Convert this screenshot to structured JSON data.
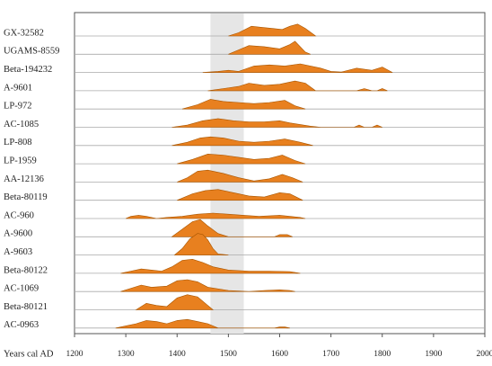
{
  "chart_data": {
    "type": "ridgeline",
    "x_label": "Years cal AD",
    "xlim": [
      1200,
      2000
    ],
    "xticks": [
      1200,
      1300,
      1400,
      1500,
      1600,
      1700,
      1800,
      1900,
      2000
    ],
    "highlight": [
      1465,
      1530
    ],
    "color": "#e8801f",
    "grid": true,
    "series": [
      {
        "name": "GX-32582",
        "x": [
          1500,
          1520,
          1545,
          1565,
          1585,
          1605,
          1620,
          1635,
          1650,
          1670
        ],
        "values": [
          0,
          0.15,
          0.45,
          0.4,
          0.35,
          0.3,
          0.45,
          0.55,
          0.35,
          0
        ]
      },
      {
        "name": "UGAMS-8559",
        "x": [
          1500,
          1520,
          1540,
          1570,
          1600,
          1620,
          1630,
          1650,
          1660
        ],
        "values": [
          0,
          0.2,
          0.4,
          0.35,
          0.25,
          0.45,
          0.6,
          0.1,
          0
        ]
      },
      {
        "name": "Beta-194232",
        "x": [
          1450,
          1480,
          1500,
          1520,
          1550,
          1580,
          1610,
          1640,
          1680,
          1700,
          1720,
          1750,
          1780,
          1800,
          1820
        ],
        "values": [
          0,
          0.05,
          0.1,
          0.05,
          0.3,
          0.35,
          0.3,
          0.4,
          0.2,
          0.05,
          0.02,
          0.2,
          0.1,
          0.25,
          0
        ]
      },
      {
        "name": "A-9601",
        "x": [
          1460,
          1490,
          1520,
          1540,
          1570,
          1600,
          1630,
          1650,
          1670,
          1750,
          1765,
          1780,
          1790,
          1800,
          1810
        ],
        "values": [
          0,
          0.1,
          0.2,
          0.35,
          0.25,
          0.3,
          0.45,
          0.35,
          0,
          0,
          0.1,
          0,
          0,
          0.1,
          0
        ]
      },
      {
        "name": "LP-972",
        "x": [
          1410,
          1440,
          1465,
          1490,
          1520,
          1550,
          1580,
          1610,
          1630,
          1650
        ],
        "values": [
          0,
          0.2,
          0.45,
          0.35,
          0.3,
          0.25,
          0.3,
          0.4,
          0.15,
          0
        ]
      },
      {
        "name": "AC-1085",
        "x": [
          1390,
          1420,
          1450,
          1480,
          1510,
          1540,
          1570,
          1600,
          1620,
          1660,
          1680,
          1745,
          1755,
          1765,
          1780,
          1790,
          1800
        ],
        "values": [
          0,
          0.1,
          0.3,
          0.4,
          0.3,
          0.25,
          0.25,
          0.3,
          0.2,
          0.05,
          0,
          0,
          0.1,
          0,
          0,
          0.1,
          0
        ]
      },
      {
        "name": "LP-808",
        "x": [
          1390,
          1420,
          1445,
          1465,
          1490,
          1520,
          1550,
          1580,
          1610,
          1640,
          1665
        ],
        "values": [
          0,
          0.15,
          0.35,
          0.4,
          0.35,
          0.2,
          0.15,
          0.2,
          0.3,
          0.15,
          0
        ]
      },
      {
        "name": "LP-1959",
        "x": [
          1400,
          1430,
          1460,
          1490,
          1520,
          1550,
          1580,
          1605,
          1630,
          1650
        ],
        "values": [
          0,
          0.2,
          0.45,
          0.4,
          0.3,
          0.2,
          0.25,
          0.4,
          0.15,
          0
        ]
      },
      {
        "name": "AA-12136",
        "x": [
          1400,
          1420,
          1440,
          1460,
          1490,
          1520,
          1550,
          1580,
          1605,
          1625,
          1645
        ],
        "values": [
          0,
          0.2,
          0.5,
          0.55,
          0.4,
          0.2,
          0.05,
          0.15,
          0.35,
          0.2,
          0
        ]
      },
      {
        "name": "Beta-80119",
        "x": [
          1400,
          1430,
          1455,
          1480,
          1510,
          1540,
          1570,
          1600,
          1620,
          1645
        ],
        "values": [
          0,
          0.3,
          0.45,
          0.5,
          0.35,
          0.2,
          0.15,
          0.35,
          0.3,
          0
        ]
      },
      {
        "name": "AC-960",
        "x": [
          1300,
          1310,
          1325,
          1340,
          1360,
          1380,
          1410,
          1440,
          1470,
          1500,
          1530,
          1560,
          1600,
          1620,
          1640,
          1650
        ],
        "values": [
          0,
          0.1,
          0.15,
          0.1,
          0,
          0.05,
          0.1,
          0.2,
          0.25,
          0.2,
          0.15,
          0.1,
          0.15,
          0.1,
          0.05,
          0
        ]
      },
      {
        "name": "A-9600",
        "x": [
          1390,
          1410,
          1430,
          1445,
          1460,
          1480,
          1500,
          1590,
          1600,
          1615,
          1625
        ],
        "values": [
          0,
          0.35,
          0.7,
          0.8,
          0.5,
          0.15,
          0,
          0,
          0.1,
          0.1,
          0
        ]
      },
      {
        "name": "A-9603",
        "x": [
          1395,
          1410,
          1425,
          1440,
          1450,
          1460,
          1470,
          1480,
          1500
        ],
        "values": [
          0,
          0.3,
          0.75,
          1.0,
          0.95,
          0.7,
          0.3,
          0.05,
          0
        ]
      },
      {
        "name": "Beta-80122",
        "x": [
          1290,
          1310,
          1330,
          1350,
          1370,
          1390,
          1410,
          1430,
          1450,
          1470,
          1500,
          1540,
          1580,
          1620,
          1640
        ],
        "values": [
          0,
          0.1,
          0.2,
          0.15,
          0.1,
          0.3,
          0.6,
          0.65,
          0.5,
          0.3,
          0.15,
          0.1,
          0.1,
          0.08,
          0
        ]
      },
      {
        "name": "AC-1069",
        "x": [
          1290,
          1310,
          1330,
          1350,
          1380,
          1400,
          1420,
          1440,
          1460,
          1500,
          1540,
          1570,
          1600,
          1620,
          1630
        ],
        "values": [
          0,
          0.15,
          0.3,
          0.2,
          0.25,
          0.5,
          0.55,
          0.45,
          0.2,
          0.05,
          0,
          0.05,
          0.08,
          0.05,
          0
        ]
      },
      {
        "name": "Beta-80121",
        "x": [
          1320,
          1340,
          1360,
          1380,
          1400,
          1420,
          1440,
          1460,
          1470
        ],
        "values": [
          0,
          0.3,
          0.2,
          0.15,
          0.55,
          0.7,
          0.6,
          0.2,
          0
        ]
      },
      {
        "name": "AC-0963",
        "x": [
          1280,
          1300,
          1320,
          1340,
          1360,
          1380,
          1400,
          1420,
          1440,
          1460,
          1480,
          1590,
          1600,
          1610,
          1620
        ],
        "values": [
          0,
          0.1,
          0.2,
          0.35,
          0.3,
          0.2,
          0.35,
          0.4,
          0.3,
          0.2,
          0,
          0,
          0.05,
          0.05,
          0
        ]
      }
    ]
  }
}
